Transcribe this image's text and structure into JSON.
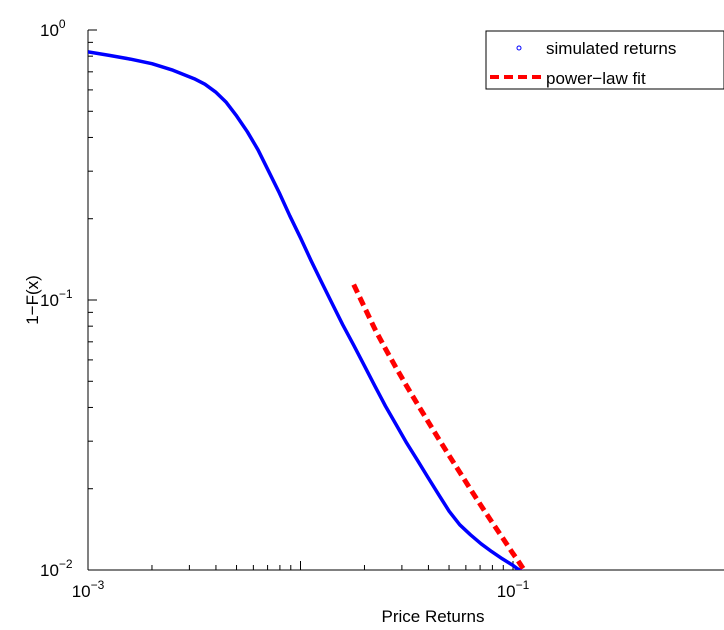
{
  "chart_data": {
    "type": "line",
    "title": "",
    "xlabel": "Price Returns",
    "ylabel": "1−F(x)",
    "xscale": "log",
    "yscale": "log",
    "xlim": [
      0.001,
      0.15
    ],
    "ylim": [
      0.01,
      1
    ],
    "x_ticks": [
      {
        "base": "10",
        "exp": "−3",
        "value": 0.001
      },
      {
        "base": "10",
        "exp": "−1",
        "value": 0.1
      }
    ],
    "y_ticks": [
      {
        "base": "10",
        "exp": "0",
        "value": 1
      },
      {
        "base": "10",
        "exp": "−1",
        "value": 0.1
      },
      {
        "base": "10",
        "exp": "−2",
        "value": 0.01
      }
    ],
    "grid": false,
    "legend_position": "top-right",
    "series": [
      {
        "name": "simulated returns",
        "color": "#0000ff",
        "marker": "circle",
        "x": [
          0.001,
          0.00126,
          0.00158,
          0.002,
          0.00251,
          0.00316,
          0.00355,
          0.00398,
          0.00447,
          0.00501,
          0.00562,
          0.00631,
          0.00708,
          0.00794,
          0.00891,
          0.01,
          0.0112,
          0.0126,
          0.0141,
          0.0158,
          0.0178,
          0.02,
          0.0224,
          0.0251,
          0.0282,
          0.0316,
          0.0355,
          0.0398,
          0.0447,
          0.0501,
          0.0562,
          0.0631,
          0.0708,
          0.0794,
          0.0891,
          0.1,
          0.105,
          0.11,
          0.115,
          0.12,
          0.125
        ],
        "y": [
          0.83,
          0.805,
          0.78,
          0.75,
          0.71,
          0.66,
          0.63,
          0.59,
          0.54,
          0.48,
          0.42,
          0.36,
          0.3,
          0.25,
          0.205,
          0.17,
          0.14,
          0.116,
          0.097,
          0.081,
          0.068,
          0.057,
          0.048,
          0.0405,
          0.0345,
          0.0295,
          0.0255,
          0.022,
          0.019,
          0.0165,
          0.0147,
          0.0135,
          0.0125,
          0.0117,
          0.011,
          0.0104,
          0.0101,
          0.0099,
          0.0098,
          0.0097,
          0.0096
        ]
      },
      {
        "name": "power−law fit",
        "color": "#ff0000",
        "style": "dashed",
        "x": [
          0.0178,
          0.02,
          0.0224,
          0.0251,
          0.0282,
          0.0316,
          0.0355,
          0.0398,
          0.0447,
          0.0501,
          0.0562,
          0.0631,
          0.0708,
          0.0794,
          0.0891,
          0.1,
          0.105,
          0.11,
          0.115
        ],
        "y": [
          0.114,
          0.094,
          0.078,
          0.066,
          0.056,
          0.048,
          0.0412,
          0.0355,
          0.0306,
          0.0265,
          0.023,
          0.0199,
          0.0173,
          0.0151,
          0.0132,
          0.0115,
          0.0109,
          0.0103,
          0.0098
        ]
      }
    ]
  }
}
